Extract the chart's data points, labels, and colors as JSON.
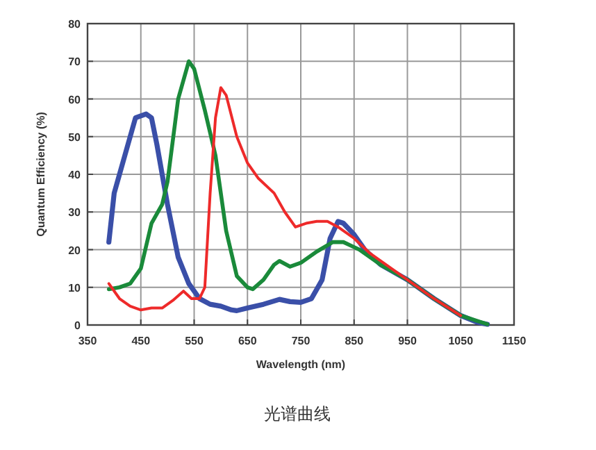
{
  "chart_data": {
    "type": "line",
    "xlabel": "Wavelength (nm)",
    "ylabel": "Quantum Efficiency (%)",
    "annotations": [
      "光谱曲线"
    ],
    "xlim": [
      350,
      1150
    ],
    "ylim": [
      0,
      80
    ],
    "xticks": [
      350,
      450,
      550,
      650,
      750,
      850,
      950,
      1050,
      1150
    ],
    "yticks": [
      0,
      10,
      20,
      30,
      40,
      50,
      60,
      70,
      80
    ],
    "grid": true,
    "line_style": "solid",
    "marker": "none",
    "series": [
      {
        "color": "#3a4fa8",
        "x": [
          390,
          400,
          420,
          440,
          460,
          470,
          480,
          500,
          520,
          540,
          560,
          580,
          600,
          620,
          630,
          650,
          680,
          710,
          730,
          750,
          770,
          790,
          805,
          820,
          830,
          850,
          870,
          900,
          950,
          1000,
          1050,
          1080,
          1100
        ],
        "values": [
          22,
          35,
          45,
          55,
          56,
          55,
          48,
          32,
          18,
          11,
          7,
          5.5,
          5,
          4,
          3.8,
          4.5,
          5.5,
          6.8,
          6.2,
          6,
          7,
          12,
          23,
          27.5,
          27,
          24,
          20,
          16,
          12,
          7,
          2.5,
          0.8,
          0.2
        ]
      },
      {
        "color": "#1a8a3a",
        "x": [
          390,
          410,
          430,
          450,
          470,
          490,
          500,
          520,
          540,
          550,
          570,
          590,
          610,
          630,
          650,
          660,
          680,
          700,
          710,
          730,
          750,
          780,
          810,
          830,
          860,
          900,
          950,
          1000,
          1050,
          1100
        ],
        "values": [
          9.5,
          10,
          11,
          15,
          27,
          32,
          38,
          60,
          70,
          68,
          57,
          45,
          25,
          13,
          10,
          9.5,
          12,
          16,
          17,
          15.5,
          16.5,
          19.5,
          22,
          22,
          20,
          16,
          12,
          7,
          2.5,
          0.2
        ]
      },
      {
        "color": "#ee2a2a",
        "x": [
          390,
          410,
          430,
          450,
          470,
          490,
          510,
          530,
          545,
          560,
          570,
          580,
          590,
          600,
          610,
          630,
          650,
          670,
          700,
          720,
          740,
          760,
          780,
          800,
          820,
          850,
          880,
          920,
          950,
          1000,
          1050
        ],
        "values": [
          11,
          7,
          5,
          4,
          4.5,
          4.5,
          6.5,
          9,
          7,
          7,
          10,
          35,
          55,
          63,
          61,
          50,
          43,
          39,
          35,
          30,
          26,
          27,
          27.5,
          27.5,
          26,
          23,
          19,
          15,
          12,
          7,
          2.5
        ]
      }
    ]
  }
}
